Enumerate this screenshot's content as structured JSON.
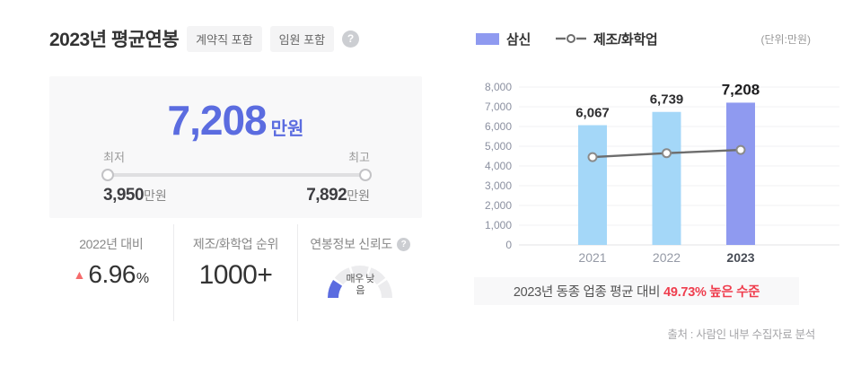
{
  "colors": {
    "accent_blue": "#5b6ce0",
    "bar_blue": "#a4d7f8",
    "bar_highlight": "#8f9af0",
    "line_gray": "#6d6d6d",
    "red": "#ef3e4e",
    "triangle_red": "#f56b6b",
    "gauge_active": "#5b6ce0",
    "gauge_inactive": "#ececee",
    "card_bg": "#f8f8f9"
  },
  "header": {
    "title": "2023년 평균연봉",
    "tags": [
      "계약직 포함",
      "임원 포함"
    ],
    "help_icon": "?"
  },
  "summary": {
    "value": "7,208",
    "unit": "만원",
    "min_label": "최저",
    "max_label": "최고",
    "min_value": "3,950",
    "min_unit": "만원",
    "max_value": "7,892",
    "max_unit": "만원"
  },
  "stats": {
    "yoy": {
      "label": "2022년 대비",
      "direction_icon": "▲",
      "value": "6.96",
      "percent_sign": "%"
    },
    "rank": {
      "label": "제조/화학업 순위",
      "value": "1000+"
    },
    "reliability": {
      "label": "연봉정보 신뢰도",
      "help_icon": "?",
      "level_label": "매우 낮음",
      "level": 1,
      "levels": 5
    }
  },
  "chart": {
    "legend": [
      {
        "label": "삼신",
        "type": "bar"
      },
      {
        "label": "제조/화학업",
        "type": "line"
      }
    ],
    "unit_note": "(단위:만원)"
  },
  "chart_data": {
    "type": "bar",
    "categories": [
      "2021",
      "2022",
      "2023"
    ],
    "series": [
      {
        "name": "삼신",
        "type": "bar",
        "values": [
          6067,
          6739,
          7208
        ],
        "labels": [
          "6,067",
          "6,739",
          "7,208"
        ]
      },
      {
        "name": "제조/화학업",
        "type": "line",
        "values": [
          4450,
          4650,
          4814
        ],
        "estimated": true
      }
    ],
    "title": "",
    "xlabel": "",
    "ylabel": "",
    "ylim": [
      0,
      8000
    ],
    "ytick_step": 1000,
    "grid": true,
    "legend_position": "top",
    "highlight_category": "2023"
  },
  "comparison": {
    "prefix": "2023년 동종 업종 평균 대비",
    "highlight": "49.73% 높은 수준"
  },
  "source": "출처 : 사람인 내부 수집자료 분석"
}
